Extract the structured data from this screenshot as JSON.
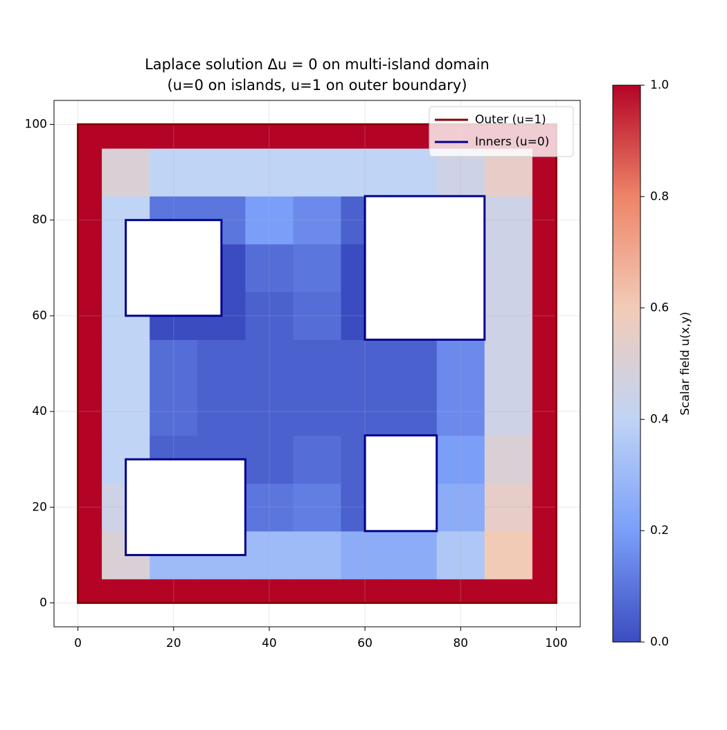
{
  "chart_data": {
    "type": "field",
    "title": "Laplace solution Δu = 0 on multi-island domain",
    "subtitle": "(u=0 on islands, u=1 on outer boundary)",
    "xlim": [
      -5,
      105
    ],
    "ylim": [
      -5,
      105
    ],
    "xticks": [
      0,
      20,
      40,
      60,
      80,
      100
    ],
    "yticks": [
      0,
      20,
      40,
      60,
      80,
      100
    ],
    "grid": true,
    "x": [
      0,
      10,
      20,
      30,
      40,
      50,
      60,
      70,
      80,
      90,
      100
    ],
    "y": [
      0,
      10,
      20,
      30,
      40,
      50,
      60,
      70,
      80,
      90,
      100
    ],
    "values": [
      [
        1,
        1,
        1,
        1,
        1,
        1,
        1,
        1,
        1,
        1,
        1
      ],
      [
        1,
        0.5,
        0.3,
        0.3,
        0.3,
        0.3,
        0.25,
        0.25,
        0.35,
        0.6,
        1
      ],
      [
        1,
        0.45,
        0,
        0,
        0.1,
        0.12,
        0.05,
        0,
        0.25,
        0.55,
        1
      ],
      [
        1,
        0.4,
        0.05,
        0.05,
        0.05,
        0.08,
        0.05,
        0.05,
        0.2,
        0.5,
        1
      ],
      [
        1,
        0.4,
        0.08,
        0.05,
        0.05,
        0.05,
        0.05,
        0.05,
        0.15,
        0.45,
        1
      ],
      [
        1,
        0.4,
        0.08,
        0.05,
        0.05,
        0.05,
        0.05,
        0.05,
        0.15,
        0.45,
        1
      ],
      [
        1,
        0.4,
        0,
        0,
        0.05,
        0.08,
        0,
        0,
        0.15,
        0.45,
        1
      ],
      [
        1,
        0.4,
        0,
        0,
        0.08,
        0.1,
        0,
        0,
        0.15,
        0.45,
        1
      ],
      [
        1,
        0.4,
        0.1,
        0.1,
        0.2,
        0.15,
        0.05,
        0.05,
        0.2,
        0.45,
        1
      ],
      [
        1,
        0.5,
        0.4,
        0.4,
        0.4,
        0.4,
        0.4,
        0.4,
        0.45,
        0.55,
        1
      ],
      [
        1,
        1,
        1,
        1,
        1,
        1,
        1,
        1,
        1,
        1,
        1
      ]
    ],
    "colormap": [
      "#3b4cc0",
      "#7b9ff9",
      "#c0d4f5",
      "#f2cbb7",
      "#ee8468",
      "#b40426"
    ],
    "clim": [
      0,
      1
    ],
    "cticks": [
      {
        "value": 0,
        "label": "0.0"
      },
      0.2,
      0.4,
      0.6,
      0.8,
      {
        "value": 1,
        "label": "1.0"
      }
    ],
    "colorbar_label": "Scalar field u(x,y)",
    "outer": {
      "name": "Outer (u=1)",
      "color": "#8b0000",
      "x": [
        0,
        100
      ],
      "y": [
        0,
        100
      ]
    },
    "islands": {
      "name": "Inners (u=0)",
      "color": "#00008b",
      "rects": [
        [
          10,
          60,
          30,
          80
        ],
        [
          60,
          55,
          85,
          85
        ],
        [
          10,
          10,
          35,
          30
        ],
        [
          60,
          15,
          75,
          35
        ]
      ]
    },
    "legend": "upper right"
  }
}
